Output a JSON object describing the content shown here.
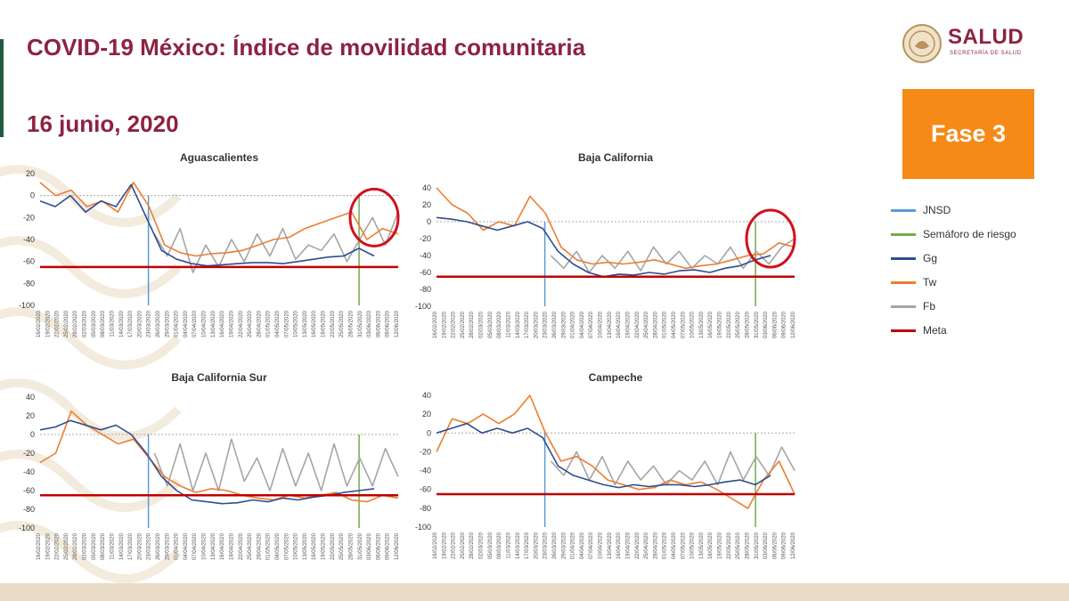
{
  "header": {
    "title": "COVID-19 México: Índice de movilidad comunitaria",
    "date": "16 junio, 2020",
    "logo_text": "SALUD",
    "logo_subtext": "SECRETARÍA DE SALUD",
    "phase_badge": "Fase 3"
  },
  "colors": {
    "title": "#8c2341",
    "phase_badge": "#f58a17",
    "JNSD": "#5b9bd5",
    "Semaforo": "#70ad47",
    "Gg": "#2e4e8f",
    "Tw": "#ed7d31",
    "Fb": "#a5a5a5",
    "Meta": "#c00000",
    "highlight_circle": "#d0101e"
  },
  "legend": {
    "items": [
      {
        "label": "JNSD",
        "color": "#5b9bd5"
      },
      {
        "label": "Semáforo de riesgo",
        "color": "#70ad47"
      },
      {
        "label": "Gg",
        "color": "#2e4e8f"
      },
      {
        "label": "Tw",
        "color": "#ed7d31"
      },
      {
        "label": "Fb",
        "color": "#a5a5a5"
      },
      {
        "label": "Meta",
        "color": "#c00000"
      }
    ]
  },
  "chart_data": [
    {
      "type": "line",
      "title": "Aguascalientes",
      "ylim": [
        -100,
        20
      ],
      "yticks": [
        20,
        0,
        -20,
        -40,
        -60,
        -80,
        -100
      ],
      "meta": -65,
      "x_start": "2020-02-16",
      "x_end": "2020-06-14",
      "jnsd_date": "2020-03-23",
      "semaforo_date": "2020-06-01",
      "highlight": true,
      "series": [
        {
          "name": "Gg",
          "x_from": "2020-02-16",
          "x_to": "2020-06-06",
          "values": [
            -5,
            -10,
            0,
            -15,
            -5,
            -10,
            10,
            -20,
            -50,
            -58,
            -62,
            -64,
            -63,
            -62,
            -61,
            -61,
            -62,
            -60,
            -58,
            -56,
            -55,
            -48,
            -55
          ]
        },
        {
          "name": "Tw",
          "x_from": "2020-02-16",
          "x_to": "2020-06-14",
          "values": [
            12,
            0,
            5,
            -10,
            -5,
            -15,
            12,
            -10,
            -45,
            -52,
            -55,
            -53,
            -52,
            -50,
            -45,
            -40,
            -38,
            -30,
            -25,
            -20,
            -15,
            -40,
            -30,
            -35
          ]
        },
        {
          "name": "Fb",
          "x_from": "2020-03-25",
          "x_to": "2020-06-14",
          "values": [
            -35,
            -55,
            -30,
            -70,
            -45,
            -65,
            -40,
            -60,
            -35,
            -55,
            -30,
            -58,
            -45,
            -50,
            -35,
            -60,
            -40,
            -20,
            -45,
            -15
          ]
        }
      ],
      "xticks": [
        "16/02/2020",
        "19/02/2020",
        "22/02/2020",
        "25/02/2020",
        "28/02/2020",
        "02/03/2020",
        "05/03/2020",
        "08/03/2020",
        "11/03/2020",
        "14/03/2020",
        "17/03/2020",
        "20/03/2020",
        "23/03/2020",
        "26/03/2020",
        "29/03/2020",
        "01/04/2020",
        "04/04/2020",
        "07/04/2020",
        "10/04/2020",
        "13/04/2020",
        "16/04/2020",
        "19/04/2020",
        "22/04/2020",
        "25/04/2020",
        "28/04/2020",
        "01/05/2020",
        "04/05/2020",
        "07/05/2020",
        "10/05/2020",
        "13/05/2020",
        "16/05/2020",
        "19/05/2020",
        "22/05/2020",
        "25/05/2020",
        "28/05/2020",
        "31/05/2020",
        "03/06/2020",
        "06/06/2020",
        "09/06/2020",
        "12/06/2020"
      ]
    },
    {
      "type": "line",
      "title": "Baja California",
      "ylim": [
        -100,
        40
      ],
      "yticks": [
        40,
        20,
        0,
        -20,
        -40,
        -60,
        -80,
        -100
      ],
      "meta": -65,
      "x_start": "2020-02-16",
      "x_end": "2020-06-14",
      "jnsd_date": "2020-03-23",
      "semaforo_date": "2020-06-01",
      "highlight": true,
      "series": [
        {
          "name": "Gg",
          "x_from": "2020-02-16",
          "x_to": "2020-06-06",
          "values": [
            5,
            3,
            0,
            -5,
            -10,
            -5,
            0,
            -8,
            -35,
            -50,
            -60,
            -65,
            -62,
            -63,
            -60,
            -62,
            -58,
            -57,
            -60,
            -55,
            -52,
            -45,
            -40
          ]
        },
        {
          "name": "Tw",
          "x_from": "2020-02-16",
          "x_to": "2020-06-14",
          "values": [
            40,
            20,
            10,
            -10,
            0,
            -5,
            30,
            10,
            -30,
            -45,
            -50,
            -48,
            -50,
            -48,
            -45,
            -50,
            -55,
            -52,
            -50,
            -45,
            -40,
            -38,
            -25,
            -30
          ]
        },
        {
          "name": "Fb",
          "x_from": "2020-03-25",
          "x_to": "2020-06-14",
          "values": [
            -40,
            -55,
            -35,
            -60,
            -40,
            -55,
            -35,
            -58,
            -30,
            -50,
            -35,
            -55,
            -40,
            -50,
            -30,
            -55,
            -35,
            -50,
            -30,
            -20
          ]
        }
      ],
      "xticks": [
        "16/02/2020",
        "19/02/2020",
        "22/02/2020",
        "25/02/2020",
        "28/02/2020",
        "02/03/2020",
        "05/03/2020",
        "08/03/2020",
        "11/03/2020",
        "14/03/2020",
        "17/03/2020",
        "20/03/2020",
        "23/03/2020",
        "26/03/2020",
        "29/03/2020",
        "01/04/2020",
        "04/04/2020",
        "07/04/2020",
        "10/04/2020",
        "13/04/2020",
        "16/04/2020",
        "19/04/2020",
        "22/04/2020",
        "25/04/2020",
        "28/04/2020",
        "01/05/2020",
        "04/05/2020",
        "07/05/2020",
        "10/05/2020",
        "13/05/2020",
        "16/05/2020",
        "19/05/2020",
        "22/05/2020",
        "25/05/2020",
        "28/05/2020",
        "31/05/2020",
        "03/06/2020",
        "06/06/2020",
        "09/06/2020",
        "12/06/2020"
      ]
    },
    {
      "type": "line",
      "title": "Baja California Sur",
      "ylim": [
        -100,
        40
      ],
      "yticks": [
        40,
        20,
        0,
        -20,
        -40,
        -60,
        -80,
        -100
      ],
      "meta": -65,
      "x_start": "2020-02-16",
      "x_end": "2020-06-14",
      "jnsd_date": "2020-03-23",
      "semaforo_date": "2020-06-01",
      "highlight": false,
      "series": [
        {
          "name": "Gg",
          "x_from": "2020-02-16",
          "x_to": "2020-06-06",
          "values": [
            5,
            8,
            15,
            10,
            5,
            10,
            0,
            -20,
            -45,
            -60,
            -70,
            -72,
            -74,
            -73,
            -70,
            -72,
            -68,
            -70,
            -67,
            -65,
            -62,
            -60,
            -58
          ]
        },
        {
          "name": "Tw",
          "x_from": "2020-02-16",
          "x_to": "2020-06-14",
          "values": [
            -30,
            -20,
            25,
            10,
            0,
            -10,
            -5,
            -25,
            -45,
            -55,
            -62,
            -58,
            -60,
            -65,
            -68,
            -70,
            -65,
            -68,
            -65,
            -62,
            -70,
            -72,
            -65,
            -68
          ]
        },
        {
          "name": "Fb",
          "x_from": "2020-03-25",
          "x_to": "2020-06-14",
          "values": [
            -20,
            -55,
            -10,
            -60,
            -20,
            -60,
            -5,
            -50,
            -25,
            -60,
            -15,
            -55,
            -20,
            -60,
            -10,
            -55,
            -25,
            -55,
            -15,
            -45
          ]
        }
      ],
      "xticks": [
        "16/02/2020",
        "19/02/2020",
        "22/02/2020",
        "25/02/2020",
        "28/02/2020",
        "02/03/2020",
        "05/03/2020",
        "08/03/2020",
        "11/03/2020",
        "14/03/2020",
        "17/03/2020",
        "20/03/2020",
        "23/03/2020",
        "26/03/2020",
        "29/03/2020",
        "01/04/2020",
        "04/04/2020",
        "07/04/2020",
        "10/04/2020",
        "13/04/2020",
        "16/04/2020",
        "19/04/2020",
        "22/04/2020",
        "25/04/2020",
        "28/04/2020",
        "01/05/2020",
        "04/05/2020",
        "07/05/2020",
        "10/05/2020",
        "13/05/2020",
        "16/05/2020",
        "19/05/2020",
        "22/05/2020",
        "25/05/2020",
        "28/05/2020",
        "31/05/2020",
        "03/06/2020",
        "06/06/2020",
        "09/06/2020",
        "12/06/2020"
      ]
    },
    {
      "type": "line",
      "title": "Campeche",
      "ylim": [
        -100,
        40
      ],
      "yticks": [
        40,
        20,
        0,
        -20,
        -40,
        -60,
        -80,
        -100
      ],
      "meta": -65,
      "x_start": "2020-02-16",
      "x_end": "2020-06-14",
      "jnsd_date": "2020-03-23",
      "semaforo_date": "2020-06-01",
      "highlight": false,
      "series": [
        {
          "name": "Gg",
          "x_from": "2020-02-16",
          "x_to": "2020-06-06",
          "values": [
            0,
            5,
            10,
            0,
            5,
            0,
            5,
            -5,
            -35,
            -45,
            -50,
            -55,
            -58,
            -55,
            -57,
            -55,
            -55,
            -57,
            -55,
            -52,
            -50,
            -55,
            -45
          ]
        },
        {
          "name": "Tw",
          "x_from": "2020-02-16",
          "x_to": "2020-06-14",
          "values": [
            -20,
            15,
            10,
            20,
            10,
            20,
            40,
            0,
            -30,
            -25,
            -35,
            -50,
            -55,
            -60,
            -58,
            -50,
            -55,
            -52,
            -60,
            -70,
            -80,
            -50,
            -30,
            -65
          ]
        },
        {
          "name": "Fb",
          "x_from": "2020-03-25",
          "x_to": "2020-06-14",
          "values": [
            -30,
            -45,
            -20,
            -50,
            -25,
            -55,
            -30,
            -50,
            -35,
            -55,
            -40,
            -50,
            -30,
            -55,
            -20,
            -50,
            -25,
            -45,
            -15,
            -40
          ]
        }
      ],
      "xticks": [
        "16/02/2020",
        "19/02/2020",
        "22/02/2020",
        "25/02/2020",
        "28/02/2020",
        "02/03/2020",
        "05/03/2020",
        "08/03/2020",
        "11/03/2020",
        "14/03/2020",
        "17/03/2020",
        "20/03/2020",
        "23/03/2020",
        "26/03/2020",
        "29/03/2020",
        "01/04/2020",
        "04/04/2020",
        "07/04/2020",
        "10/04/2020",
        "13/04/2020",
        "16/04/2020",
        "19/04/2020",
        "22/04/2020",
        "25/04/2020",
        "28/04/2020",
        "01/05/2020",
        "04/05/2020",
        "07/05/2020",
        "10/05/2020",
        "13/05/2020",
        "16/05/2020",
        "19/05/2020",
        "22/05/2020",
        "25/05/2020",
        "28/05/2020",
        "31/05/2020",
        "03/06/2020",
        "06/06/2020",
        "09/06/2020",
        "12/06/2020"
      ]
    }
  ]
}
